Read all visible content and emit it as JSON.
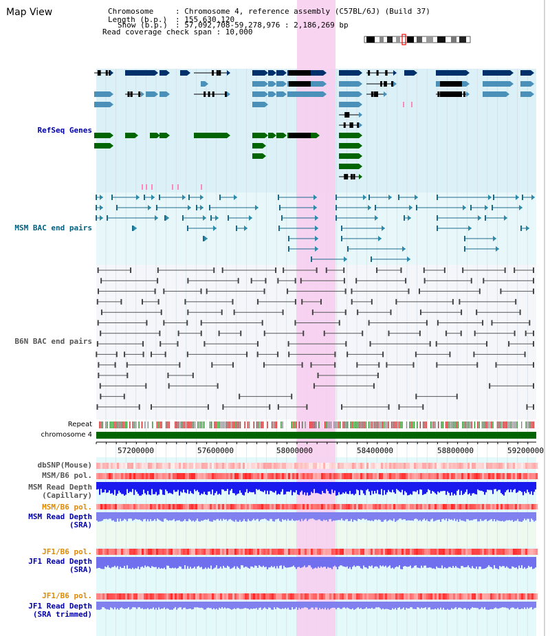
{
  "window": {
    "title": "Map View"
  },
  "info": {
    "chromosome_key": "Chromosome",
    "chromosome_val": ": Chromosome 4, reference assembly (C57BL/6J) (Build 37)",
    "length_key": "Length (b.p.)",
    "length_val": ": 155,630,120",
    "show_key": "Show (b.p.)",
    "show_val": ": 57,092,708-59,278,976 : 2,186,269 bp",
    "coverage": "Read coverage check span : 10,000"
  },
  "tracks": {
    "refseq": "RefSeq Genes",
    "msm_bac": "MSM BAC end pairs",
    "b6n_bac": "B6N BAC end pairs",
    "repeat": "Repeat",
    "chromosome": "chromosome 4",
    "dbsnp": "dbSNP(Mouse)",
    "msm_pol": "MSM/B6 pol.",
    "msm_depth_cap_1": "MSM Read Depth",
    "msm_depth_cap_2": "(Capillary)",
    "msm_pol_2": "MSM/B6 pol.",
    "msm_depth_sra_1": "MSM Read Depth",
    "msm_depth_sra_2": "(SRA)",
    "jf1_pol": "JF1/B6 pol.",
    "jf1_depth_sra_1": "JF1 Read Depth",
    "jf1_depth_sra_2": "(SRA)",
    "jf1_pol_2": "JF1/B6 pol.",
    "jf1_trim_1": "JF1 Read Depth",
    "jf1_trim_2": "(SRA trimmed)"
  },
  "axis": {
    "ticks": [
      "57200000",
      "57600000",
      "58000000",
      "58400000",
      "58800000",
      "59200000"
    ]
  },
  "colors": {
    "gene_blue": "#00306a",
    "gene_lightblue": "#4a90b8",
    "gene_green": "#006400",
    "msm_line": "#1a6a8a",
    "b6n_line": "#555555",
    "highlight": "#f8ccee",
    "label_blue": "#0000aa",
    "label_teal": "#006080",
    "label_gray": "#555555",
    "label_orange": "#e08a00"
  }
}
